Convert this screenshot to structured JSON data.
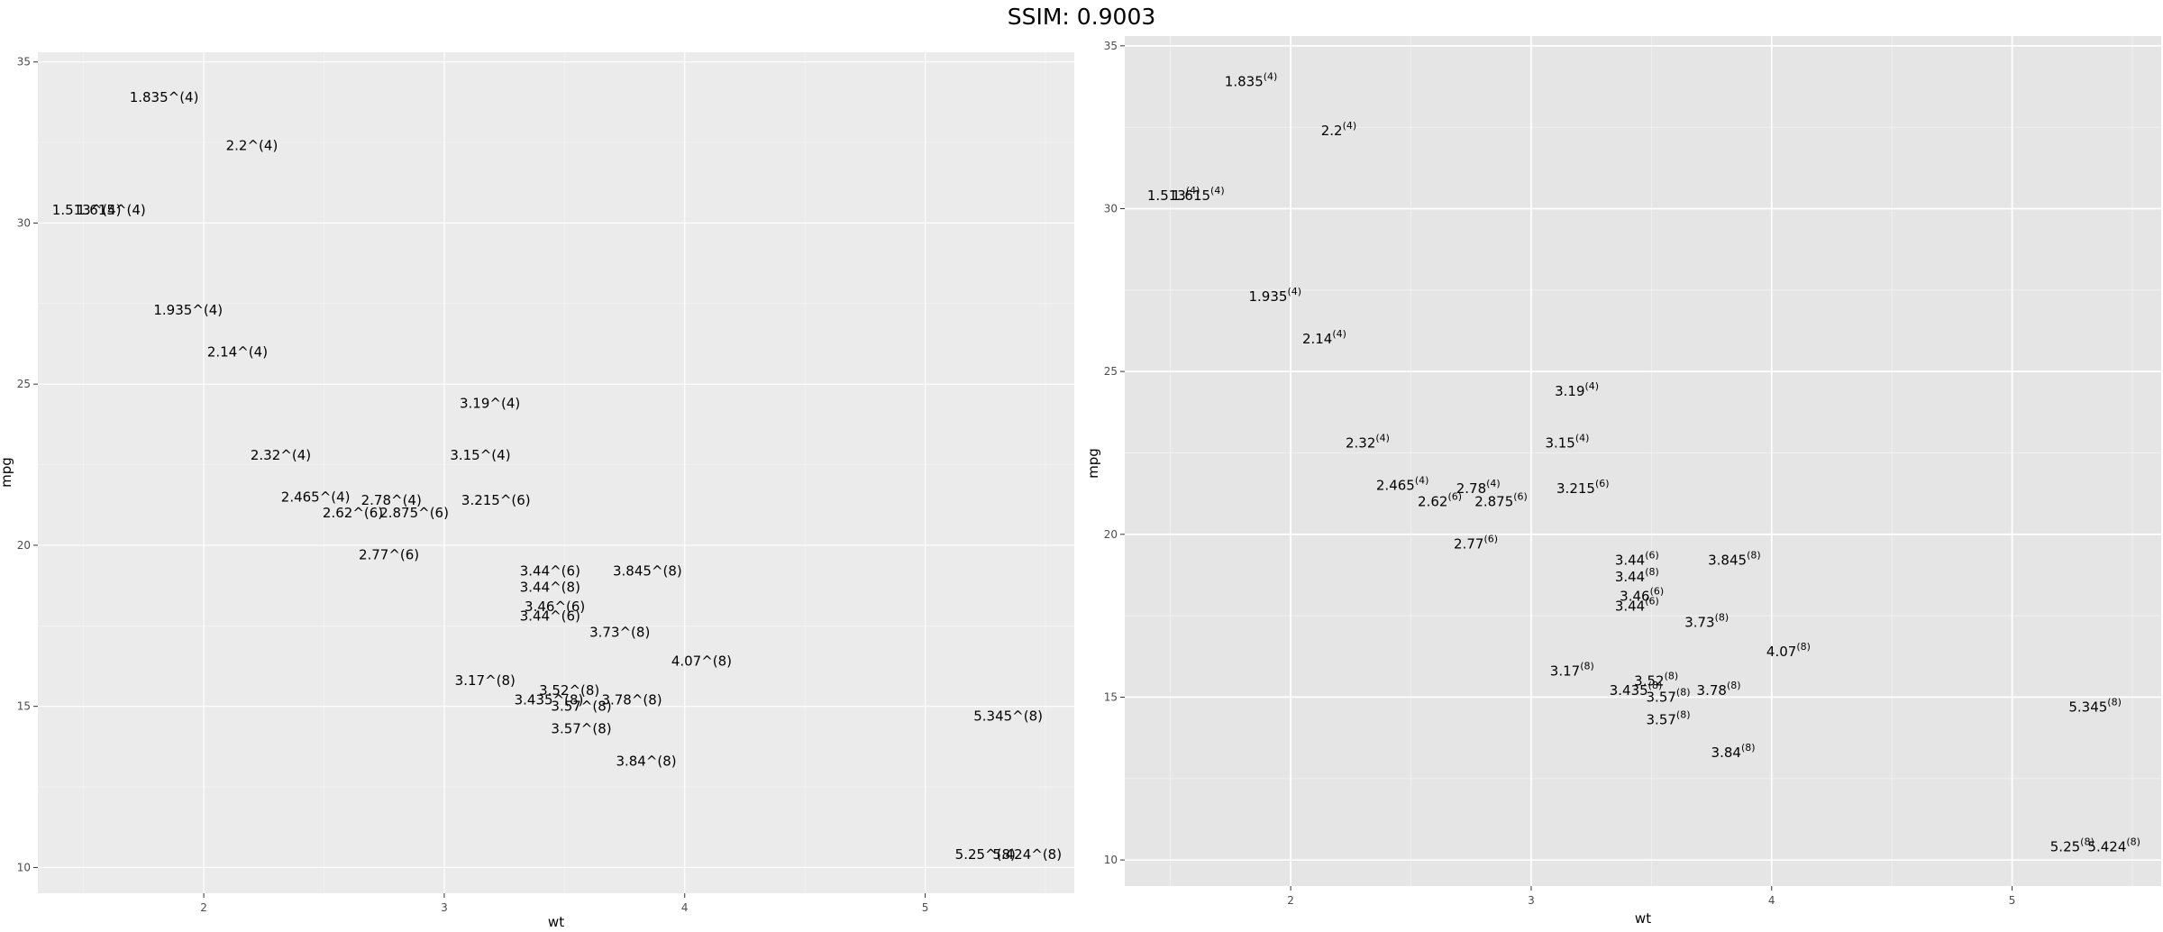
{
  "figure_title": "SSIM: 0.9003",
  "chart_data": [
    {
      "type": "scatter",
      "label_style": "caret",
      "xlabel": "wt",
      "ylabel": "mpg",
      "xlim": [
        1.31,
        5.62
      ],
      "ylim": [
        9.2,
        35.3
      ],
      "xticks": [
        2,
        3,
        4,
        5
      ],
      "yticks": [
        10,
        15,
        20,
        25,
        30,
        35
      ],
      "grid": true,
      "points": [
        {
          "x": 2.62,
          "y": 21.0,
          "base": "2.62",
          "exp": "6"
        },
        {
          "x": 2.875,
          "y": 21.0,
          "base": "2.875",
          "exp": "6"
        },
        {
          "x": 2.32,
          "y": 22.8,
          "base": "2.32",
          "exp": "4"
        },
        {
          "x": 3.215,
          "y": 21.4,
          "base": "3.215",
          "exp": "6"
        },
        {
          "x": 3.44,
          "y": 18.7,
          "base": "3.44",
          "exp": "8"
        },
        {
          "x": 3.46,
          "y": 18.1,
          "base": "3.46",
          "exp": "6"
        },
        {
          "x": 3.57,
          "y": 14.3,
          "base": "3.57",
          "exp": "8"
        },
        {
          "x": 3.19,
          "y": 24.4,
          "base": "3.19",
          "exp": "4"
        },
        {
          "x": 3.15,
          "y": 22.8,
          "base": "3.15",
          "exp": "4"
        },
        {
          "x": 3.44,
          "y": 19.2,
          "base": "3.44",
          "exp": "6"
        },
        {
          "x": 3.44,
          "y": 17.8,
          "base": "3.44",
          "exp": "6"
        },
        {
          "x": 4.07,
          "y": 16.4,
          "base": "4.07",
          "exp": "8"
        },
        {
          "x": 3.73,
          "y": 17.3,
          "base": "3.73",
          "exp": "8"
        },
        {
          "x": 3.78,
          "y": 15.2,
          "base": "3.78",
          "exp": "8"
        },
        {
          "x": 5.25,
          "y": 10.4,
          "base": "5.25",
          "exp": "8"
        },
        {
          "x": 5.424,
          "y": 10.4,
          "base": "5.424",
          "exp": "8"
        },
        {
          "x": 5.345,
          "y": 14.7,
          "base": "5.345",
          "exp": "8"
        },
        {
          "x": 2.2,
          "y": 32.4,
          "base": "2.2",
          "exp": "4"
        },
        {
          "x": 1.615,
          "y": 30.4,
          "base": "1.615",
          "exp": "4"
        },
        {
          "x": 1.835,
          "y": 33.9,
          "base": "1.835",
          "exp": "4"
        },
        {
          "x": 2.465,
          "y": 21.5,
          "base": "2.465",
          "exp": "4"
        },
        {
          "x": 3.52,
          "y": 15.5,
          "base": "3.52",
          "exp": "8"
        },
        {
          "x": 3.435,
          "y": 15.2,
          "base": "3.435",
          "exp": "8"
        },
        {
          "x": 3.84,
          "y": 13.3,
          "base": "3.84",
          "exp": "8"
        },
        {
          "x": 3.845,
          "y": 19.2,
          "base": "3.845",
          "exp": "8"
        },
        {
          "x": 1.935,
          "y": 27.3,
          "base": "1.935",
          "exp": "4"
        },
        {
          "x": 2.14,
          "y": 26.0,
          "base": "2.14",
          "exp": "4"
        },
        {
          "x": 1.513,
          "y": 30.4,
          "base": "1.513",
          "exp": "4"
        },
        {
          "x": 3.17,
          "y": 15.8,
          "base": "3.17",
          "exp": "8"
        },
        {
          "x": 2.77,
          "y": 19.7,
          "base": "2.77",
          "exp": "6"
        },
        {
          "x": 3.57,
          "y": 15.0,
          "base": "3.57",
          "exp": "8"
        },
        {
          "x": 2.78,
          "y": 21.4,
          "base": "2.78",
          "exp": "4"
        }
      ]
    },
    {
      "type": "scatter",
      "label_style": "superscript",
      "xlabel": "wt",
      "ylabel": "mpg",
      "xlim": [
        1.31,
        5.62
      ],
      "ylim": [
        9.2,
        35.3
      ],
      "xticks": [
        2,
        3,
        4,
        5
      ],
      "yticks": [
        10,
        15,
        20,
        25,
        30,
        35
      ],
      "grid": true,
      "points": [
        {
          "x": 2.62,
          "y": 21.0,
          "base": "2.62",
          "exp": "6"
        },
        {
          "x": 2.875,
          "y": 21.0,
          "base": "2.875",
          "exp": "6"
        },
        {
          "x": 2.32,
          "y": 22.8,
          "base": "2.32",
          "exp": "4"
        },
        {
          "x": 3.215,
          "y": 21.4,
          "base": "3.215",
          "exp": "6"
        },
        {
          "x": 3.44,
          "y": 18.7,
          "base": "3.44",
          "exp": "8"
        },
        {
          "x": 3.46,
          "y": 18.1,
          "base": "3.46",
          "exp": "6"
        },
        {
          "x": 3.57,
          "y": 14.3,
          "base": "3.57",
          "exp": "8"
        },
        {
          "x": 3.19,
          "y": 24.4,
          "base": "3.19",
          "exp": "4"
        },
        {
          "x": 3.15,
          "y": 22.8,
          "base": "3.15",
          "exp": "4"
        },
        {
          "x": 3.44,
          "y": 19.2,
          "base": "3.44",
          "exp": "6"
        },
        {
          "x": 3.44,
          "y": 17.8,
          "base": "3.44",
          "exp": "6"
        },
        {
          "x": 4.07,
          "y": 16.4,
          "base": "4.07",
          "exp": "8"
        },
        {
          "x": 3.73,
          "y": 17.3,
          "base": "3.73",
          "exp": "8"
        },
        {
          "x": 3.78,
          "y": 15.2,
          "base": "3.78",
          "exp": "8"
        },
        {
          "x": 5.25,
          "y": 10.4,
          "base": "5.25",
          "exp": "8"
        },
        {
          "x": 5.424,
          "y": 10.4,
          "base": "5.424",
          "exp": "8"
        },
        {
          "x": 5.345,
          "y": 14.7,
          "base": "5.345",
          "exp": "8"
        },
        {
          "x": 2.2,
          "y": 32.4,
          "base": "2.2",
          "exp": "4"
        },
        {
          "x": 1.615,
          "y": 30.4,
          "base": "1.615",
          "exp": "4"
        },
        {
          "x": 1.835,
          "y": 33.9,
          "base": "1.835",
          "exp": "4"
        },
        {
          "x": 2.465,
          "y": 21.5,
          "base": "2.465",
          "exp": "4"
        },
        {
          "x": 3.52,
          "y": 15.5,
          "base": "3.52",
          "exp": "8"
        },
        {
          "x": 3.435,
          "y": 15.2,
          "base": "3.435",
          "exp": "8"
        },
        {
          "x": 3.84,
          "y": 13.3,
          "base": "3.84",
          "exp": "8"
        },
        {
          "x": 3.845,
          "y": 19.2,
          "base": "3.845",
          "exp": "8"
        },
        {
          "x": 1.935,
          "y": 27.3,
          "base": "1.935",
          "exp": "4"
        },
        {
          "x": 2.14,
          "y": 26.0,
          "base": "2.14",
          "exp": "4"
        },
        {
          "x": 1.513,
          "y": 30.4,
          "base": "1.513",
          "exp": "4"
        },
        {
          "x": 3.17,
          "y": 15.8,
          "base": "3.17",
          "exp": "8"
        },
        {
          "x": 2.77,
          "y": 19.7,
          "base": "2.77",
          "exp": "6"
        },
        {
          "x": 3.57,
          "y": 15.0,
          "base": "3.57",
          "exp": "8"
        },
        {
          "x": 2.78,
          "y": 21.4,
          "base": "2.78",
          "exp": "4"
        }
      ]
    }
  ]
}
